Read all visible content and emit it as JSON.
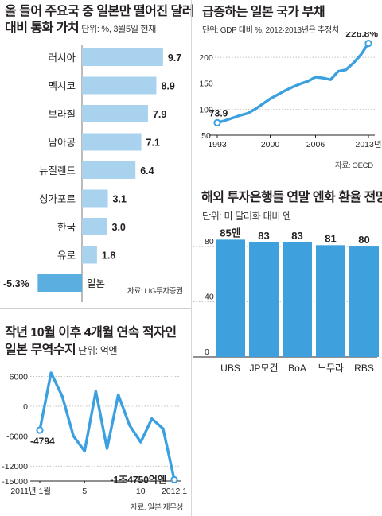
{
  "colors": {
    "bar_light": "#a9d2ee",
    "bar_dark": "#5aaee0",
    "bar_blue": "#3fa0de",
    "line_blue": "#3aa0e0",
    "axis": "#231f20",
    "grid": "#9a9a9a"
  },
  "left_top": {
    "title_line1": "올 들어 주요국 중 일본만 떨어진 달러",
    "title_line2": "대비 통화 가치",
    "subtitle": "단위: %, 3월5일 현재",
    "source": "자료: LIG투자증권"
  },
  "right_top": {
    "title": "급증하는 일본 국가 부채",
    "subtitle": "단위: GDP 대비 %, 2012·2013년은 추정치",
    "source": "자료: OECD"
  },
  "right_bottom": {
    "title": "해외 투자은행들 연말 엔화 환율 전망",
    "subtitle": "단위: 미 달러화 대비 엔"
  },
  "left_bottom": {
    "title_line1": "작년 10월 이후 4개월 연속 적자인",
    "title_line2": "일본 무역수지",
    "subtitle": "단위: 억엔",
    "source": "자료: 일본 재무성"
  },
  "chart_data": [
    {
      "type": "bar",
      "orientation": "horizontal",
      "categories": [
        "러시아",
        "멕시코",
        "브라질",
        "남아공",
        "뉴질랜드",
        "싱가포르",
        "한국",
        "유로",
        "일본"
      ],
      "values": [
        9.7,
        8.9,
        7.9,
        7.1,
        6.4,
        3.1,
        3.0,
        1.8,
        -5.3
      ],
      "value_labels": [
        "9.7",
        "8.9",
        "7.9",
        "7.1",
        "6.4",
        "3.1",
        "3.0",
        "1.8",
        "-5.3%"
      ]
    },
    {
      "type": "line",
      "x": [
        1993,
        1994,
        1995,
        1996,
        1997,
        1998,
        1999,
        2000,
        2001,
        2002,
        2003,
        2004,
        2005,
        2006,
        2007,
        2008,
        2009,
        2010,
        2011,
        2012,
        2013
      ],
      "y": [
        73.9,
        78,
        83,
        88,
        92,
        100,
        110,
        120,
        128,
        136,
        143,
        149,
        154,
        162,
        160,
        157,
        173,
        176,
        189,
        205,
        226.8
      ],
      "x_ticks": [
        "1993",
        "2000",
        "2006",
        "2013년"
      ],
      "x_tick_values": [
        1993,
        2000,
        2006,
        2013
      ],
      "y_ticks": [
        50,
        100,
        150,
        200
      ],
      "ylim": [
        50,
        240
      ],
      "annotations": [
        {
          "x": 1993,
          "y": 73.9,
          "label": "73.9"
        },
        {
          "x": 2013,
          "y": 226.8,
          "label": "226.8%"
        }
      ]
    },
    {
      "type": "bar",
      "categories": [
        "UBS",
        "JP모건",
        "BoA",
        "노무라",
        "RBS"
      ],
      "values": [
        85,
        83,
        83,
        81,
        80
      ],
      "value_labels": [
        "85엔",
        "83",
        "83",
        "81",
        "80"
      ],
      "y_ticks": [
        0,
        40,
        80
      ],
      "ylim": [
        0,
        95
      ]
    },
    {
      "type": "line",
      "x_index": [
        1,
        2,
        3,
        4,
        5,
        6,
        7,
        8,
        9,
        10,
        11,
        12,
        13
      ],
      "y": [
        -4794,
        6700,
        2000,
        -6000,
        -9000,
        3000,
        -8500,
        2300,
        -3800,
        -7200,
        -2500,
        -4500,
        -14750
      ],
      "x_ticks": [
        "2011년 1월",
        "5",
        "10",
        "2012.1"
      ],
      "x_tick_index": [
        1,
        5,
        10,
        13
      ],
      "y_ticks": [
        6000,
        0,
        -6000,
        -12000,
        -15000
      ],
      "ylim": [
        -15000,
        7000
      ],
      "annotations": [
        {
          "index": 1,
          "y": -4794,
          "label": "-4794"
        },
        {
          "index": 13,
          "y": -14750,
          "label": "-1조4750억엔"
        }
      ]
    }
  ]
}
